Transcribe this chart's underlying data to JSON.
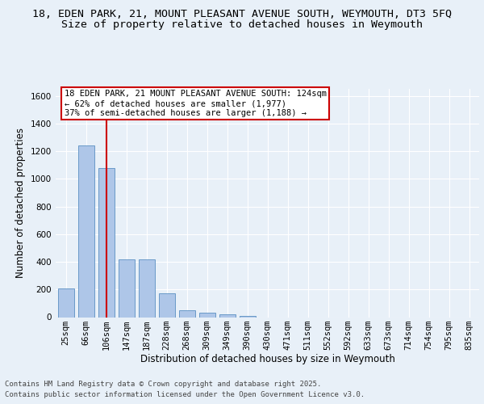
{
  "title_line1": "18, EDEN PARK, 21, MOUNT PLEASANT AVENUE SOUTH, WEYMOUTH, DT3 5FQ",
  "title_line2": "Size of property relative to detached houses in Weymouth",
  "xlabel": "Distribution of detached houses by size in Weymouth",
  "ylabel": "Number of detached properties",
  "categories": [
    "25sqm",
    "66sqm",
    "106sqm",
    "147sqm",
    "187sqm",
    "228sqm",
    "268sqm",
    "309sqm",
    "349sqm",
    "390sqm",
    "430sqm",
    "471sqm",
    "511sqm",
    "552sqm",
    "592sqm",
    "633sqm",
    "673sqm",
    "714sqm",
    "754sqm",
    "795sqm",
    "835sqm"
  ],
  "values": [
    205,
    1240,
    1080,
    415,
    415,
    175,
    50,
    30,
    18,
    8,
    0,
    0,
    0,
    0,
    0,
    0,
    0,
    0,
    0,
    0,
    0
  ],
  "bar_color": "#aec6e8",
  "bar_edge_color": "#5a8fc2",
  "red_line_index": 2,
  "red_line_color": "#cc0000",
  "annotation_line1": "18 EDEN PARK, 21 MOUNT PLEASANT AVENUE SOUTH: 124sqm",
  "annotation_line2": "← 62% of detached houses are smaller (1,977)",
  "annotation_line3": "37% of semi-detached houses are larger (1,188) →",
  "annotation_box_color": "#cc0000",
  "ylim": [
    0,
    1650
  ],
  "yticks": [
    0,
    200,
    400,
    600,
    800,
    1000,
    1200,
    1400,
    1600
  ],
  "bg_color": "#e8f0f8",
  "grid_color": "#ffffff",
  "footer_line1": "Contains HM Land Registry data © Crown copyright and database right 2025.",
  "footer_line2": "Contains public sector information licensed under the Open Government Licence v3.0.",
  "title_fontsize": 9.5,
  "subtitle_fontsize": 9.5,
  "ylabel_fontsize": 8.5,
  "xlabel_fontsize": 8.5,
  "tick_fontsize": 7.5,
  "annotation_fontsize": 7.5,
  "footer_fontsize": 6.5
}
